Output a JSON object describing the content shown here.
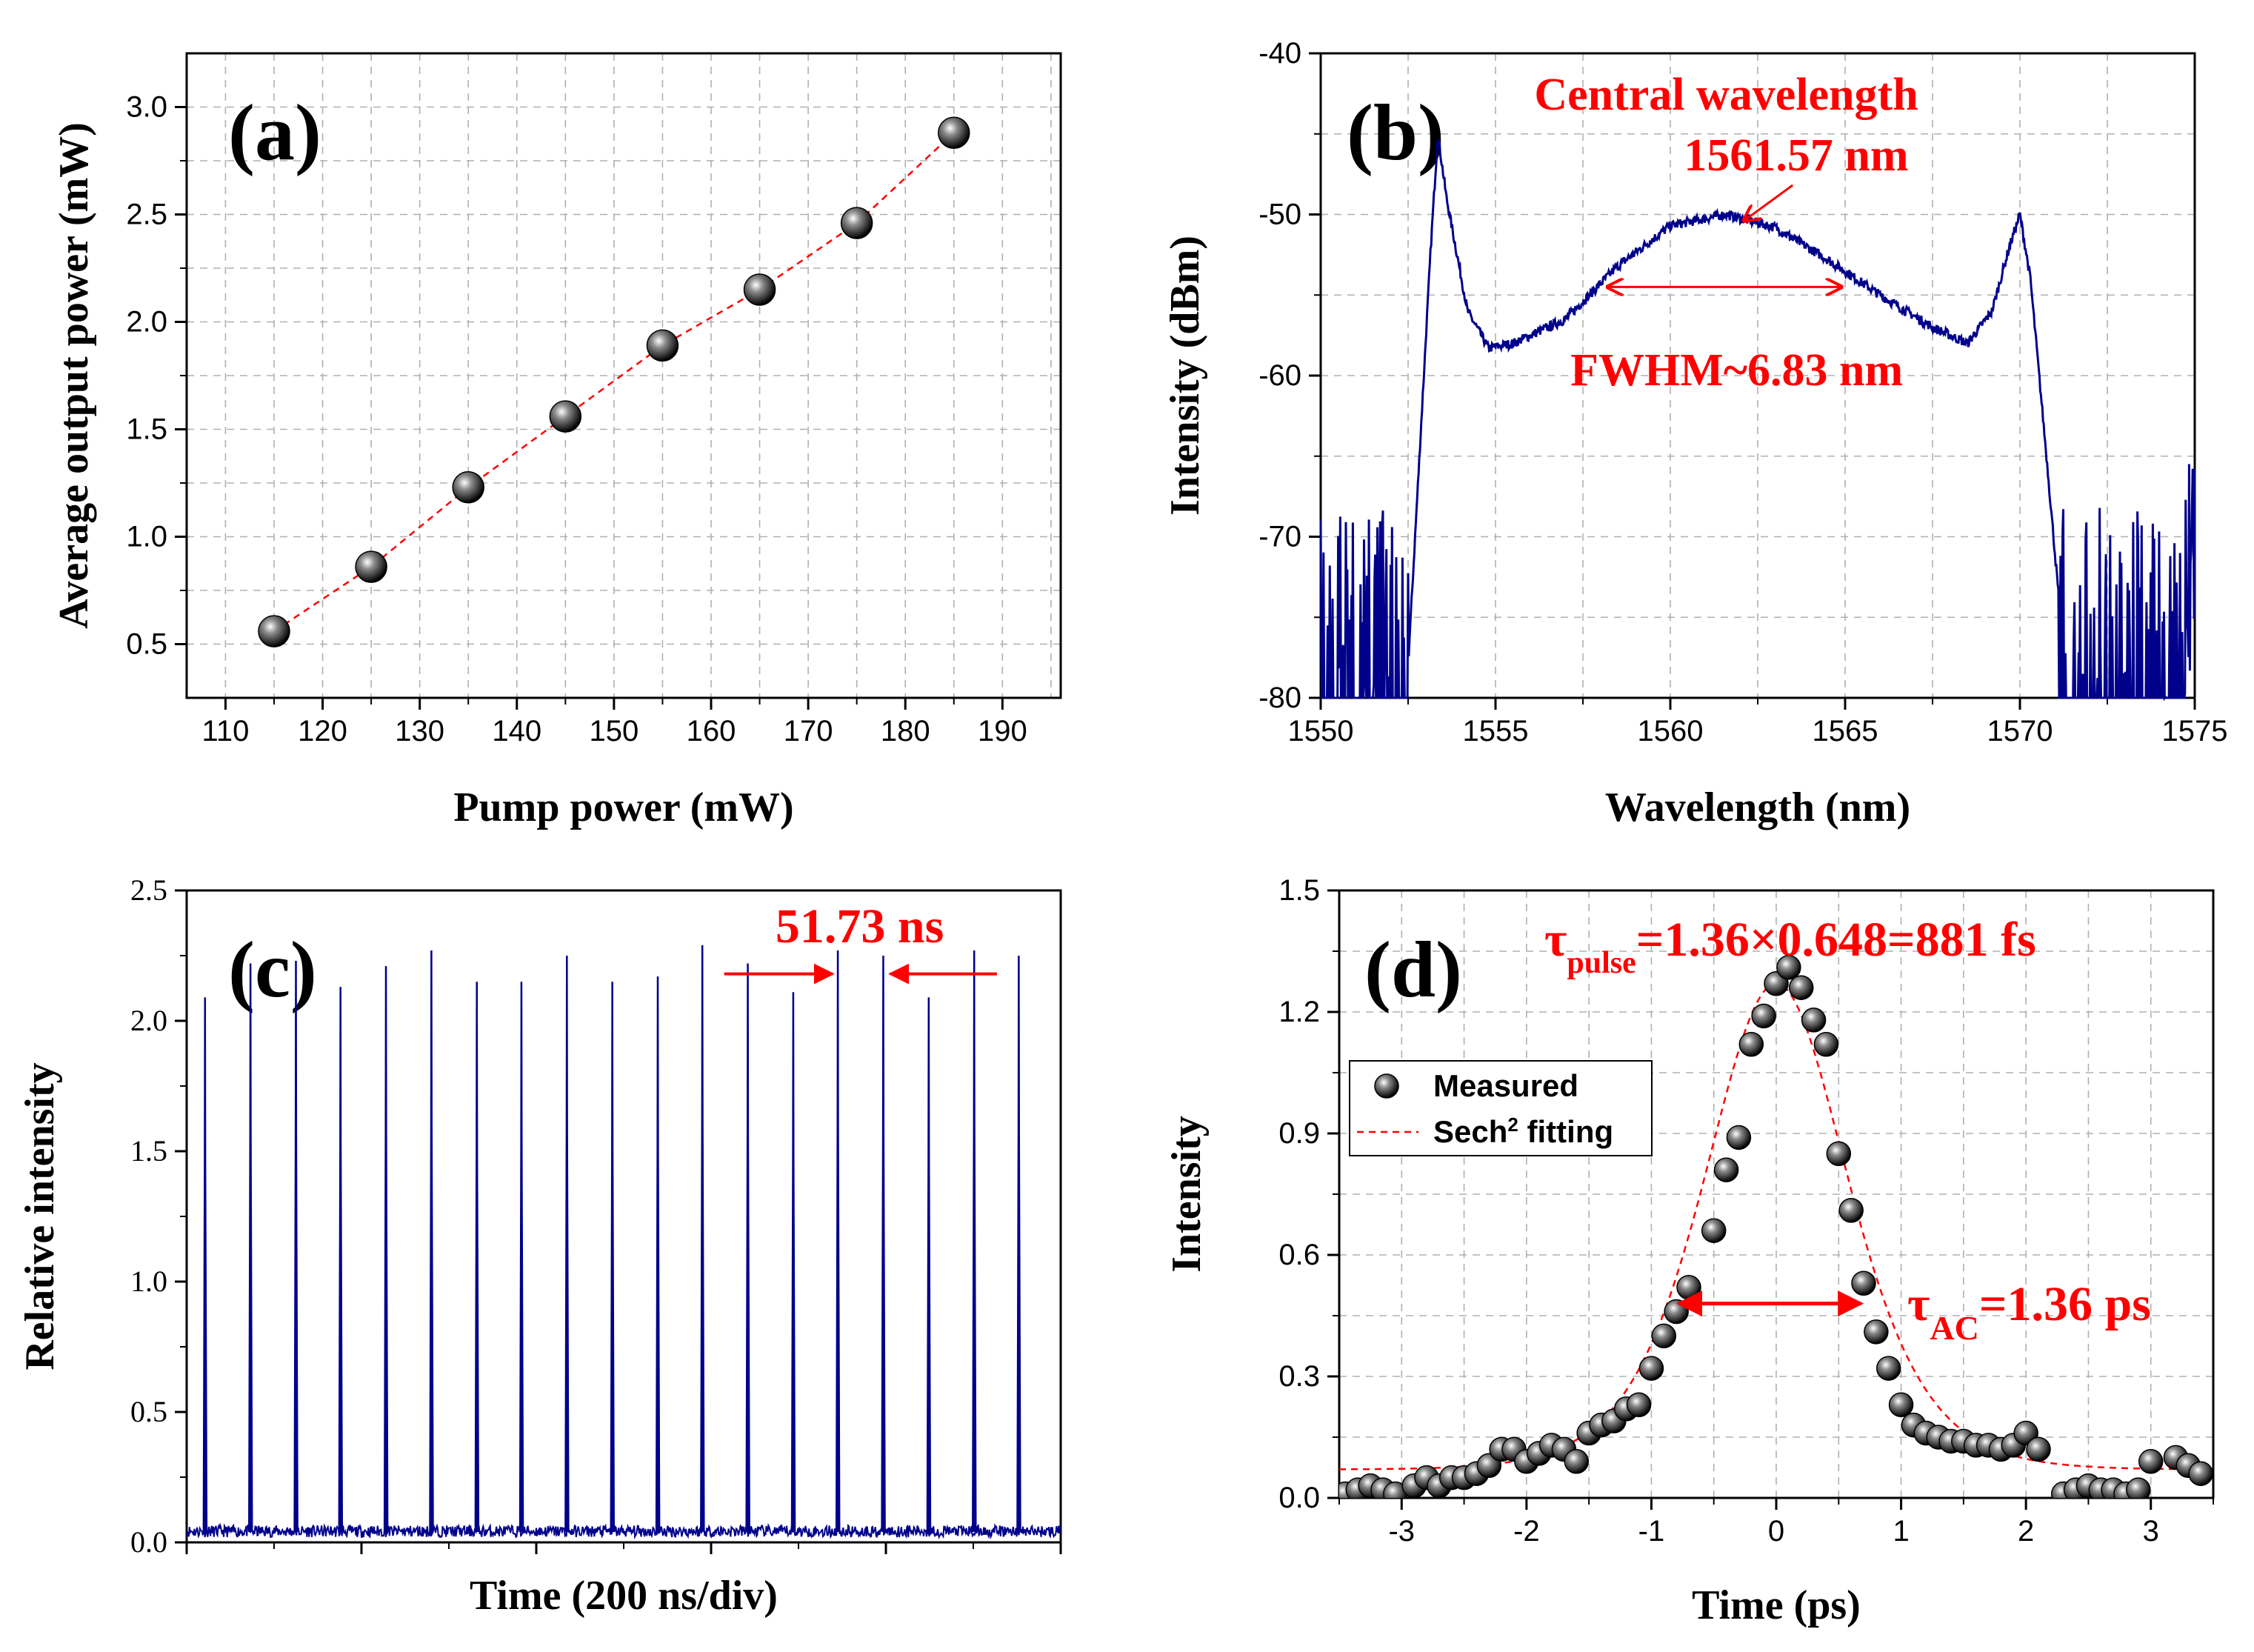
{
  "colors": {
    "red": "#ff0000",
    "blue": "#00008b",
    "grid": "#b0b0b0",
    "axis": "#000000"
  },
  "chart_data": [
    {
      "type": "scatter",
      "panel_label": "(a)",
      "title": "",
      "xlabel": "Pump power (mW)",
      "ylabel": "Average output power (mW)",
      "xlim": [
        106,
        196
      ],
      "ylim": [
        0.25,
        3.25
      ],
      "xticks": [
        "110",
        "120",
        "130",
        "140",
        "150",
        "160",
        "170",
        "180",
        "190"
      ],
      "yticks": [
        "0.5",
        "1.0",
        "1.5",
        "2.0",
        "2.5",
        "3.0"
      ],
      "x": [
        115,
        125,
        135,
        145,
        155,
        165,
        175,
        185
      ],
      "y": [
        0.56,
        0.86,
        1.23,
        1.56,
        1.89,
        2.15,
        2.46,
        2.88
      ],
      "fit_line": "dashed red"
    },
    {
      "type": "line",
      "panel_label": "(b)",
      "xlabel": "Wavelength (nm)",
      "ylabel": "Intensity (dBm)",
      "xlim": [
        1550,
        1575
      ],
      "ylim": [
        -80,
        -40
      ],
      "xticks": [
        "1550",
        "1555",
        "1560",
        "1565",
        "1570",
        "1575"
      ],
      "yticks": [
        "-40",
        "-50",
        "-60",
        "-70",
        "-80"
      ],
      "annotations": {
        "central_title": "Central wavelength",
        "central_value": "1561.57 nm",
        "fwhm": "FWHM~6.83 nm"
      },
      "series": [
        {
          "name": "spectrum",
          "x": [
            1550.0,
            1552.5,
            1552.9,
            1553.15,
            1553.35,
            1553.6,
            1554.2,
            1554.8,
            1555.5,
            1557.0,
            1558.5,
            1560.0,
            1561.57,
            1563.0,
            1564.5,
            1566.0,
            1567.5,
            1568.5,
            1569.2,
            1569.7,
            1570.0,
            1570.3,
            1570.8,
            1571.2,
            1575.0
          ],
          "y": [
            -78,
            -78,
            -62,
            -52,
            -45,
            -49,
            -56,
            -58.3,
            -58.0,
            -56.5,
            -53.2,
            -50.7,
            -50.0,
            -50.8,
            -52.8,
            -55.0,
            -57.0,
            -58.0,
            -56.0,
            -52.0,
            -50.0,
            -54.0,
            -66.0,
            -76.0,
            -76.0
          ]
        }
      ]
    },
    {
      "type": "line",
      "panel_label": "(c)",
      "xlabel": "Time (200 ns/div)",
      "ylabel": "Relative intensity",
      "xlim": [
        0,
        1000
      ],
      "ylim": [
        0,
        2.5
      ],
      "xticks": [
        "",
        "",
        "",
        "",
        "",
        ""
      ],
      "yticks": [
        "0.0",
        "0.5",
        "1.0",
        "1.5",
        "2.0",
        "2.5"
      ],
      "annotation": "51.73 ns",
      "series": [
        {
          "name": "pulse train",
          "peak_times_ns": [
            21,
            73,
            125,
            176,
            228,
            280,
            332,
            383,
            435,
            487,
            539,
            590,
            642,
            694,
            745,
            797,
            849,
            901,
            952
          ],
          "peak_values": [
            2.09,
            2.22,
            2.23,
            2.13,
            2.21,
            2.27,
            2.15,
            2.15,
            2.25,
            2.15,
            2.17,
            2.29,
            2.22,
            2.11,
            2.27,
            2.25,
            2.09,
            2.27,
            2.25
          ]
        }
      ]
    },
    {
      "type": "scatter",
      "panel_label": "(d)",
      "xlabel": "Time (ps)",
      "ylabel": "Intensity",
      "xlim": [
        -3.5,
        3.5
      ],
      "ylim": [
        0,
        1.5
      ],
      "xticks": [
        "-3",
        "-2",
        "-1",
        "0",
        "1",
        "2",
        "3"
      ],
      "yticks": [
        "0.0",
        "0.3",
        "0.6",
        "0.9",
        "1.2",
        "1.5"
      ],
      "legend": {
        "measured": "Measured",
        "fit": "Sech",
        "fit_sup": "2",
        "fit_suffix": " fitting",
        "position": "upper-left"
      },
      "annotations": {
        "tau_pulse_main": "τ",
        "tau_pulse_sub": "pulse",
        "tau_pulse_rest": "=1.36×0.648=881 fs",
        "tau_ac_main": "τ",
        "tau_ac_sub": "AC",
        "tau_ac_rest": "=1.36 ps"
      },
      "series": [
        {
          "name": "Measured",
          "x": [
            -3.45,
            -3.35,
            -3.25,
            -3.15,
            -3.05,
            -2.9,
            -2.8,
            -2.7,
            -2.6,
            -2.5,
            -2.4,
            -2.3,
            -2.2,
            -2.1,
            -2.0,
            -1.9,
            -1.8,
            -1.7,
            -1.6,
            -1.5,
            -1.4,
            -1.3,
            -1.2,
            -1.1,
            -1.0,
            -0.9,
            -0.8,
            -0.7,
            -0.5,
            -0.4,
            -0.3,
            -0.2,
            -0.1,
            0.0,
            0.1,
            0.2,
            0.3,
            0.4,
            0.5,
            0.6,
            0.7,
            0.8,
            0.9,
            1.0,
            1.1,
            1.2,
            1.3,
            1.4,
            1.5,
            1.6,
            1.7,
            1.8,
            1.9,
            2.0,
            2.1,
            2.3,
            2.4,
            2.5,
            2.6,
            2.7,
            2.8,
            2.9,
            3.0,
            3.2,
            3.3,
            3.4
          ],
          "y": [
            0.01,
            0.02,
            0.03,
            0.02,
            0.01,
            0.03,
            0.05,
            0.03,
            0.05,
            0.05,
            0.06,
            0.08,
            0.12,
            0.12,
            0.09,
            0.11,
            0.13,
            0.12,
            0.09,
            0.16,
            0.18,
            0.19,
            0.22,
            0.23,
            0.32,
            0.4,
            0.46,
            0.52,
            0.66,
            0.81,
            0.89,
            1.12,
            1.19,
            1.27,
            1.31,
            1.26,
            1.18,
            1.12,
            0.85,
            0.71,
            0.53,
            0.41,
            0.32,
            0.23,
            0.18,
            0.16,
            0.15,
            0.14,
            0.14,
            0.13,
            0.13,
            0.12,
            0.13,
            0.16,
            0.12,
            0.01,
            0.02,
            0.03,
            0.02,
            0.02,
            0.01,
            0.02,
            0.09,
            0.1,
            0.08,
            0.06
          ]
        },
        {
          "name": "Sech2 fitting",
          "peak": 1.27,
          "baseline": 0.07,
          "fwhm_ps": 1.36
        }
      ]
    }
  ]
}
